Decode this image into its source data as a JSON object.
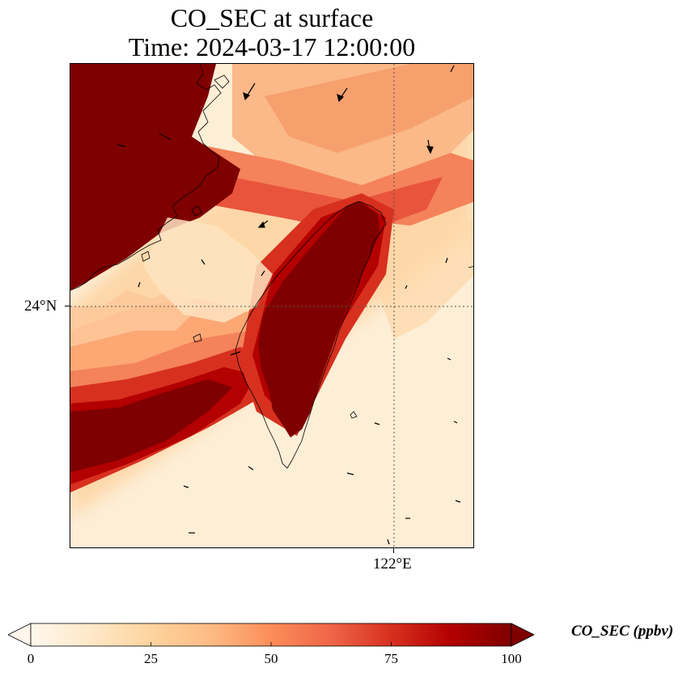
{
  "title_line1": "CO_SEC at surface",
  "title_line2": "Time: 2024-03-17 12:00:00",
  "axes": {
    "lat_tick_label": "24°N",
    "lon_tick_label": "122°E"
  },
  "colorbar": {
    "label": "CO_SEC (ppbv)",
    "min": 0,
    "max": 100,
    "ticks": [
      "0",
      "25",
      "50",
      "75",
      "100"
    ],
    "extend": "both",
    "colormap": "OrRd",
    "colors": [
      "#fff7ec",
      "#fee8c8",
      "#fdd49e",
      "#fdbb84",
      "#fc8d59",
      "#ef6548",
      "#d7301f",
      "#b30000",
      "#7f0000"
    ]
  },
  "map_features": [
    "coastline",
    "gridlines-dotted",
    "wind-vectors"
  ]
}
